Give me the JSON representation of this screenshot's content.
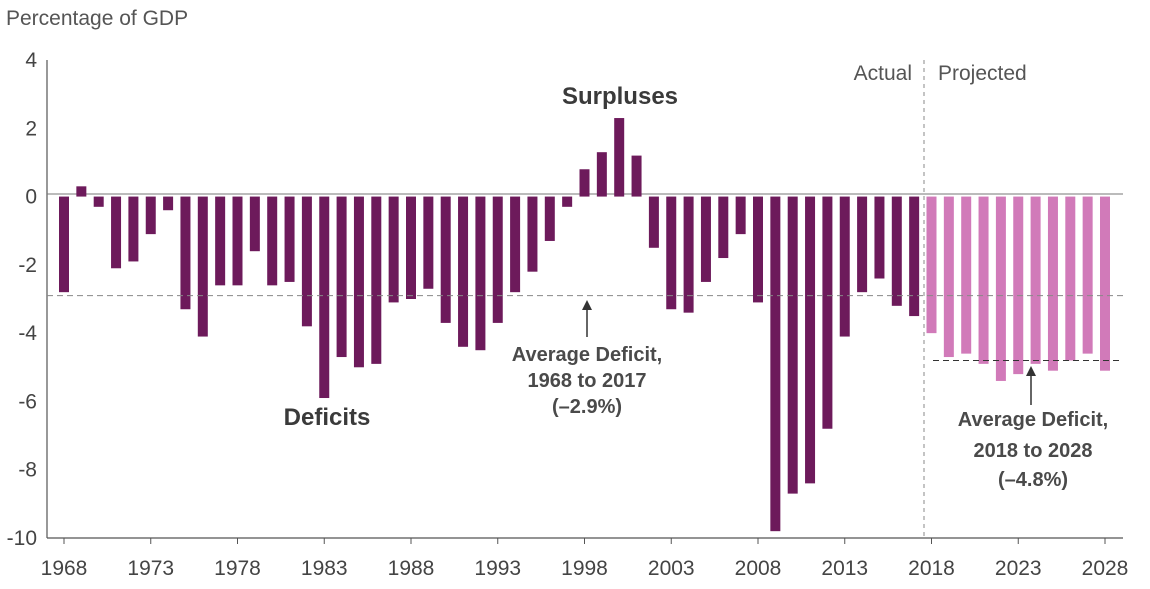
{
  "chart_data": {
    "type": "bar",
    "ylabel": "Percentage of GDP",
    "ylim": [
      -10,
      4
    ],
    "yticks": [
      "4",
      "2",
      "0",
      "-2",
      "-4",
      "-6",
      "-8",
      "-10"
    ],
    "xtick_labels": [
      "1968",
      "1973",
      "1978",
      "1983",
      "1988",
      "1993",
      "1998",
      "2003",
      "2008",
      "2013",
      "2018",
      "2023",
      "2028"
    ],
    "years": [
      1968,
      1969,
      1970,
      1971,
      1972,
      1973,
      1974,
      1975,
      1976,
      1977,
      1978,
      1979,
      1980,
      1981,
      1982,
      1983,
      1984,
      1985,
      1986,
      1987,
      1988,
      1989,
      1990,
      1991,
      1992,
      1993,
      1994,
      1995,
      1996,
      1997,
      1998,
      1999,
      2000,
      2001,
      2002,
      2003,
      2004,
      2005,
      2006,
      2007,
      2008,
      2009,
      2010,
      2011,
      2012,
      2013,
      2014,
      2015,
      2016,
      2017,
      2018,
      2019,
      2020,
      2021,
      2022,
      2023,
      2024,
      2025,
      2026,
      2027,
      2028
    ],
    "values": [
      -2.8,
      0.3,
      -0.3,
      -2.1,
      -1.9,
      -1.1,
      -0.4,
      -3.3,
      -4.1,
      -2.6,
      -2.6,
      -1.6,
      -2.6,
      -2.5,
      -3.8,
      -5.9,
      -4.7,
      -5.0,
      -4.9,
      -3.1,
      -3.0,
      -2.7,
      -3.7,
      -4.4,
      -4.5,
      -3.7,
      -2.8,
      -2.2,
      -1.3,
      -0.3,
      0.8,
      1.3,
      2.3,
      1.2,
      -1.5,
      -3.3,
      -3.4,
      -2.5,
      -1.8,
      -1.1,
      -3.1,
      -9.8,
      -8.7,
      -8.4,
      -6.8,
      -4.1,
      -2.8,
      -2.4,
      -3.2,
      -3.5,
      -4.0,
      -4.7,
      -4.6,
      -4.9,
      -5.4,
      -5.2,
      -4.9,
      -5.1,
      -4.8,
      -4.6,
      -5.1
    ],
    "actual_color": "#6d1a5b",
    "projected_color": "#d17ab9",
    "first_projected_year": 2018,
    "periods": {
      "actual": "Actual",
      "projected": "Projected"
    },
    "labels": {
      "surpluses": "Surpluses",
      "deficits": "Deficits"
    },
    "average_actual": {
      "value": -2.9,
      "line1": "Average Deficit,",
      "line2": "1968 to 2017",
      "line3": "(–2.9%)"
    },
    "average_projected": {
      "value": -4.8,
      "line1": "Average Deficit,",
      "line2": "2018 to 2028",
      "line3": "(–4.8%)"
    }
  }
}
